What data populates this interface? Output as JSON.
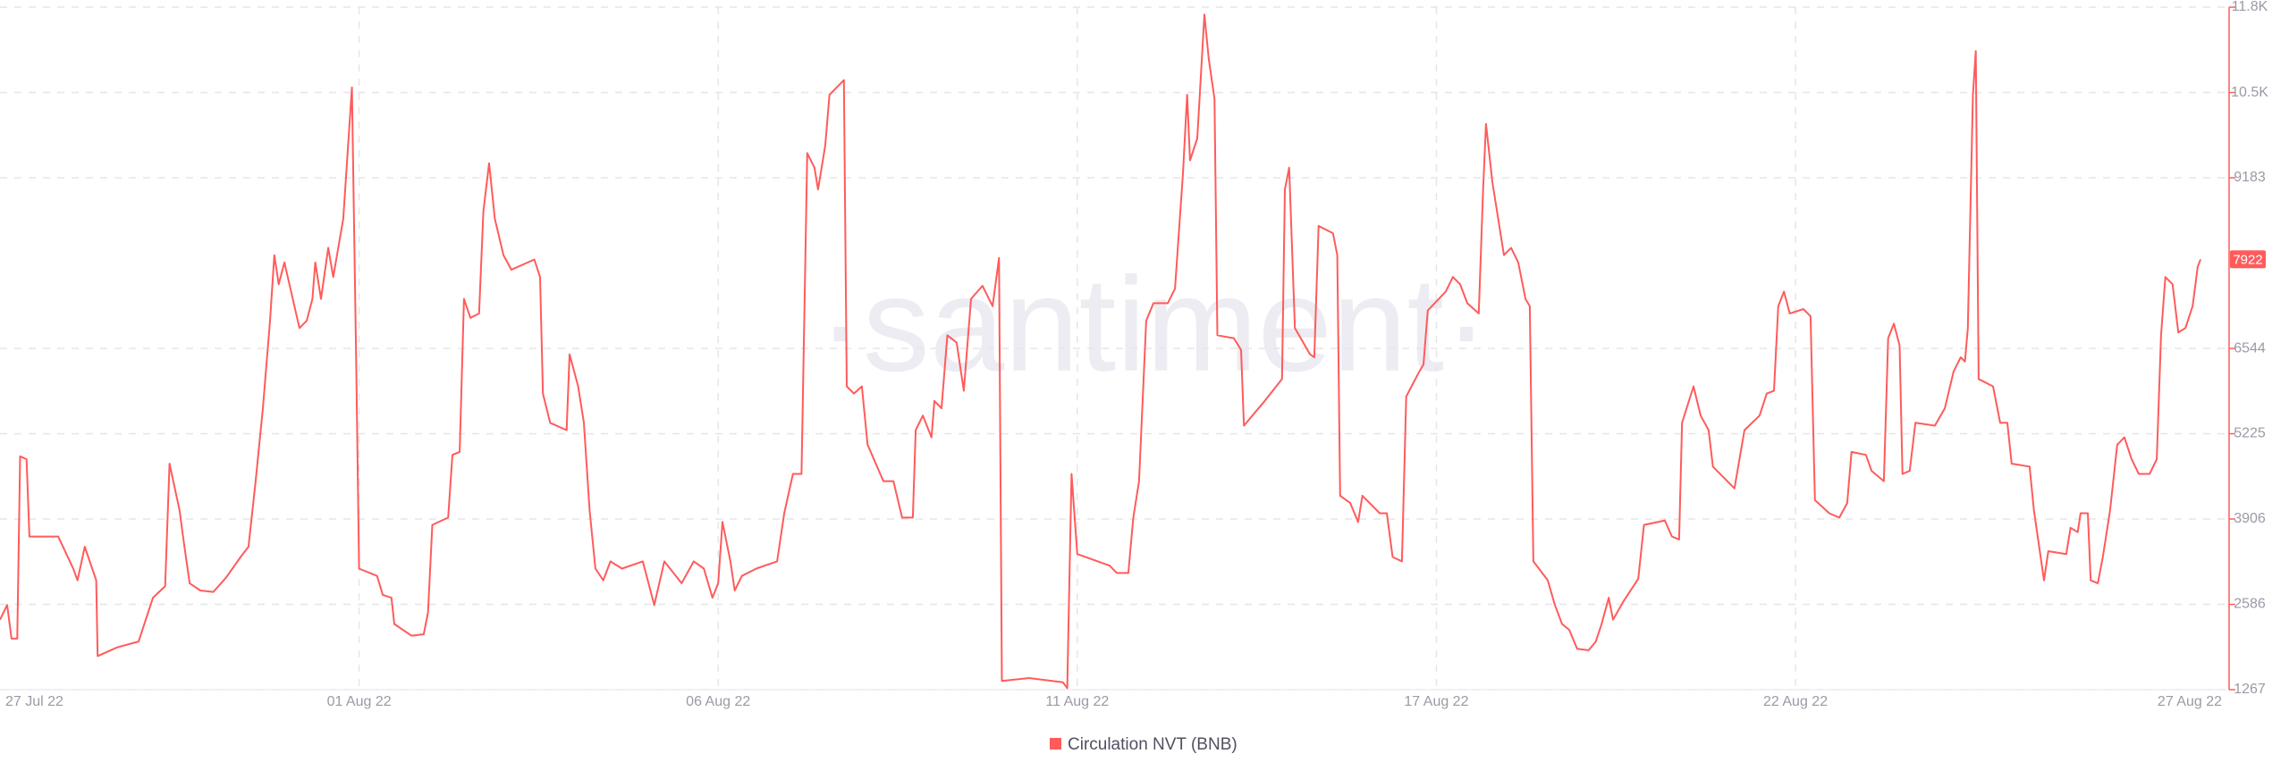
{
  "chart_data": {
    "type": "line",
    "watermark": "·santiment·",
    "x": [
      0,
      0.1,
      0.16,
      0.24,
      0.28,
      0.37,
      0.41,
      0.81,
      1.02,
      1.08,
      1.18,
      1.34,
      1.36,
      1.63,
      1.93,
      2.13,
      2.3,
      2.36,
      2.5,
      2.56,
      2.64,
      2.79,
      2.97,
      3.15,
      3.35,
      3.46,
      3.56,
      3.66,
      3.76,
      3.82,
      3.88,
      3.96,
      4.17,
      4.27,
      4.35,
      4.39,
      4.47,
      4.57,
      4.64,
      4.78,
      4.9,
      4.96,
      5.0,
      5.25,
      5.33,
      5.45,
      5.49,
      5.73,
      5.9,
      5.96,
      6.02,
      6.24,
      6.3,
      6.4,
      6.46,
      6.55,
      6.67,
      6.73,
      6.81,
      6.89,
      7.01,
      7.12,
      7.44,
      7.52,
      7.56,
      7.66,
      7.89,
      7.93,
      8.05,
      8.13,
      8.21,
      8.29,
      8.4,
      8.5,
      8.66,
      8.95,
      9.11,
      9.25,
      9.49,
      9.66,
      9.8,
      9.92,
      10.0,
      10.06,
      10.17,
      10.23,
      10.33,
      10.53,
      10.82,
      10.92,
      11.04,
      11.16,
      11.24,
      11.34,
      11.39,
      11.49,
      11.55,
      11.75,
      11.79,
      11.89,
      12.0,
      12.08,
      12.3,
      12.44,
      12.56,
      12.71,
      12.75,
      12.85,
      12.97,
      13.01,
      13.11,
      13.19,
      13.32,
      13.42,
      13.52,
      13.68,
      13.82,
      13.91,
      13.95,
      14.33,
      14.8,
      14.86,
      14.92,
      15.0,
      15.45,
      15.55,
      15.71,
      15.78,
      15.86,
      15.96,
      16.06,
      16.26,
      16.36,
      16.47,
      16.53,
      16.57,
      16.67,
      16.77,
      16.83,
      16.91,
      16.95,
      17.18,
      17.28,
      17.32,
      17.61,
      17.85,
      17.89,
      17.95,
      18.03,
      18.24,
      18.3,
      18.36,
      18.56,
      18.62,
      18.66,
      18.8,
      18.91,
      18.97,
      19.21,
      19.31,
      19.39,
      19.52,
      19.58,
      19.76,
      19.82,
      19.88,
      20.13,
      20.23,
      20.33,
      20.43,
      20.59,
      20.65,
      20.69,
      20.78,
      20.94,
      21.04,
      21.14,
      21.24,
      21.3,
      21.35,
      21.55,
      21.65,
      21.75,
      21.85,
      21.96,
      22.12,
      22.22,
      22.3,
      22.4,
      22.46,
      22.61,
      22.81,
      22.89,
      23.18,
      23.28,
      23.38,
      23.42,
      23.58,
      23.68,
      23.79,
      23.85,
      24.15,
      24.29,
      24.5,
      24.6,
      24.7,
      24.76,
      24.84,
      24.92,
      25.11,
      25.21,
      25.27,
      25.47,
      25.61,
      25.72,
      25.78,
      25.98,
      26.06,
      26.23,
      26.29,
      26.37,
      26.45,
      26.49,
      26.59,
      26.67,
      26.94,
      27.08,
      27.2,
      27.3,
      27.36,
      27.4,
      27.47,
      27.51,
      27.55,
      27.75,
      27.85,
      27.95,
      28.01,
      28.26,
      28.32,
      28.46,
      28.52,
      28.77,
      28.83,
      28.93,
      28.97,
      29.07,
      29.11,
      29.21,
      29.28,
      29.38,
      29.48,
      29.58,
      29.68,
      29.78,
      29.93,
      30.03,
      30.09,
      30.15,
      30.25,
      30.33,
      30.43,
      30.53,
      30.6,
      30.64
    ],
    "series": [
      {
        "name": "Circulation NVT (BNB)",
        "color": "#ff5b5b",
        "values": [
          2349,
          2575,
          2056,
          2056,
          4875,
          4830,
          3635,
          3635,
          3139,
          2958,
          3477,
          2958,
          1786,
          1921,
          2011,
          2688,
          2868,
          4762,
          4041,
          3545,
          2913,
          2800,
          2778,
          3003,
          3319,
          3477,
          4492,
          5619,
          6972,
          7987,
          7536,
          7874,
          6859,
          6972,
          7310,
          7874,
          7310,
          8100,
          7649,
          8551,
          10580,
          6296,
          3139,
          3026,
          2733,
          2688,
          2282,
          2101,
          2124,
          2462,
          3815,
          3928,
          4898,
          4943,
          7310,
          7017,
          7085,
          8663,
          9408,
          8551,
          7987,
          7761,
          7919,
          7649,
          5845,
          5394,
          5281,
          6454,
          5957,
          5394,
          4041,
          3139,
          2958,
          3251,
          3139,
          3251,
          2575,
          3251,
          2913,
          3251,
          3139,
          2688,
          2913,
          3860,
          3251,
          2800,
          3026,
          3139,
          3251,
          3996,
          4604,
          4604,
          9565,
          9340,
          9002,
          9678,
          10467,
          10693,
          5957,
          5845,
          5957,
          5055,
          4492,
          4492,
          3928,
          3928,
          5281,
          5506,
          5168,
          5732,
          5619,
          6747,
          6634,
          5890,
          7310,
          7513,
          7198,
          7942,
          1402,
          1447,
          1380,
          1290,
          4604,
          3364,
          3184,
          3071,
          3071,
          3928,
          4492,
          6972,
          7243,
          7243,
          7468,
          9227,
          10467,
          9453,
          9791,
          11708,
          11031,
          10400,
          6747,
          6702,
          6521,
          5349,
          5732,
          6070,
          9002,
          9340,
          6859,
          6454,
          6408,
          8438,
          8325,
          7987,
          4266,
          4153,
          3860,
          4266,
          3996,
          3996,
          3319,
          3251,
          5800,
          6183,
          6296,
          7130,
          7423,
          7649,
          7536,
          7243,
          7085,
          9002,
          10016,
          9114,
          7987,
          8100,
          7874,
          7310,
          7198,
          3251,
          2958,
          2575,
          2282,
          2192,
          1898,
          1876,
          2011,
          2282,
          2688,
          2349,
          2643,
          2981,
          3815,
          3883,
          3635,
          3590,
          5394,
          5957,
          5506,
          5281,
          4717,
          4379,
          5281,
          5506,
          5845,
          5890,
          7198,
          7423,
          7085,
          7153,
          7040,
          4199,
          3996,
          3928,
          4153,
          4943,
          4898,
          4650,
          4492,
          6702,
          6927,
          6589,
          4604,
          4650,
          5394,
          5349,
          5619,
          6183,
          6408,
          6341,
          6859,
          10467,
          11144,
          6070,
          5957,
          5394,
          5394,
          4762,
          4717,
          4041,
          2958,
          3409,
          3364,
          3770,
          3703,
          3996,
          3996,
          2958,
          2913,
          3319,
          4041,
          5055,
          5168,
          4830,
          4604,
          4604,
          4830,
          6747,
          7649,
          7536,
          6792,
          6859,
          7198,
          7807,
          7922
        ]
      }
    ],
    "xlim": [
      0,
      31
    ],
    "xticks": [
      {
        "value": 0,
        "label": "27 Jul 22"
      },
      {
        "value": 5,
        "label": "01 Aug 22"
      },
      {
        "value": 10,
        "label": "06 Aug 22"
      },
      {
        "value": 15,
        "label": "11 Aug 22"
      },
      {
        "value": 20,
        "label": "17 Aug 22"
      },
      {
        "value": 25,
        "label": "22 Aug 22"
      },
      {
        "value": 31,
        "label": "27 Aug 22"
      }
    ],
    "ylim": [
      1267,
      11822
    ],
    "yticks": [
      1267,
      2586,
      3906,
      5225,
      6544,
      9183,
      {
        "value": 10502,
        "label": "10.5K"
      },
      {
        "value": 11822,
        "label": "11.8K"
      }
    ],
    "grid": true,
    "legend": "bottom"
  }
}
